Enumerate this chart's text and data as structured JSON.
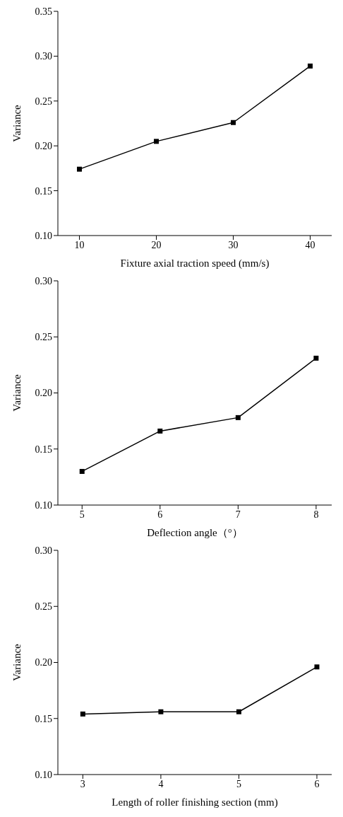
{
  "chart_data": [
    {
      "type": "line",
      "xlabel": "Fixture axial traction speed (mm/s)",
      "ylabel": "Variance",
      "x": [
        10,
        20,
        30,
        40
      ],
      "series": [
        {
          "color": "#000000",
          "values": [
            0.174,
            0.205,
            0.226,
            0.289
          ]
        }
      ],
      "xlim": [
        7.2,
        42.8
      ],
      "xticks": [
        10,
        20,
        30,
        40
      ],
      "ylim": [
        0.1,
        0.35
      ],
      "yticks": [
        {
          "value": 0.1,
          "label": "0.10"
        },
        0.15,
        {
          "value": 0.2,
          "label": "0.20"
        },
        0.25,
        {
          "value": 0.3,
          "label": "0.30"
        },
        0.35
      ],
      "grid": false,
      "legend": false,
      "marker": "square",
      "line_style": "solid"
    },
    {
      "type": "line",
      "xlabel": "Deflection angle（°）",
      "ylabel": "Variance",
      "x": [
        5,
        6,
        7,
        8
      ],
      "series": [
        {
          "color": "#000000",
          "values": [
            0.13,
            0.166,
            0.178,
            0.231
          ]
        }
      ],
      "xlim": [
        4.69,
        8.2
      ],
      "xticks": [
        5,
        6,
        7,
        8
      ],
      "ylim": [
        0.1,
        0.3
      ],
      "yticks": [
        {
          "value": 0.1,
          "label": "0.10"
        },
        0.15,
        {
          "value": 0.2,
          "label": "0.20"
        },
        0.25,
        {
          "value": 0.3,
          "label": "0.30"
        }
      ],
      "grid": false,
      "legend": false,
      "marker": "square",
      "line_style": "solid"
    },
    {
      "type": "line",
      "xlabel": "Length of roller finishing section (mm)",
      "ylabel": "Variance",
      "x": [
        3,
        4,
        5,
        6
      ],
      "series": [
        {
          "color": "#000000",
          "values": [
            0.154,
            0.156,
            0.156,
            0.196
          ]
        }
      ],
      "xlim": [
        2.68,
        6.19
      ],
      "xticks": [
        3,
        4,
        5,
        6
      ],
      "ylim": [
        0.1,
        0.3
      ],
      "yticks": [
        {
          "value": 0.1,
          "label": "0.10"
        },
        0.15,
        {
          "value": 0.2,
          "label": "0.20"
        },
        0.25,
        {
          "value": 0.3,
          "label": "0.30"
        }
      ],
      "grid": false,
      "legend": false,
      "marker": "square",
      "line_style": "solid"
    }
  ]
}
